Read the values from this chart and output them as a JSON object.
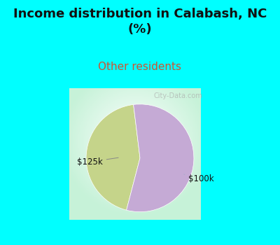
{
  "title": "Income distribution in Calabash, NC\n(%)",
  "subtitle": "Other residents",
  "title_fontsize": 13,
  "subtitle_fontsize": 11,
  "title_color": "#111111",
  "subtitle_color": "#cc5533",
  "bg_color_top": "#00ffff",
  "slices": [
    {
      "label": "$125k",
      "value": 44,
      "color": "#c5d48a"
    },
    {
      "label": "$100k",
      "value": 56,
      "color": "#c5aad5"
    }
  ],
  "start_angle": 97,
  "watermark": "City-Data.com"
}
